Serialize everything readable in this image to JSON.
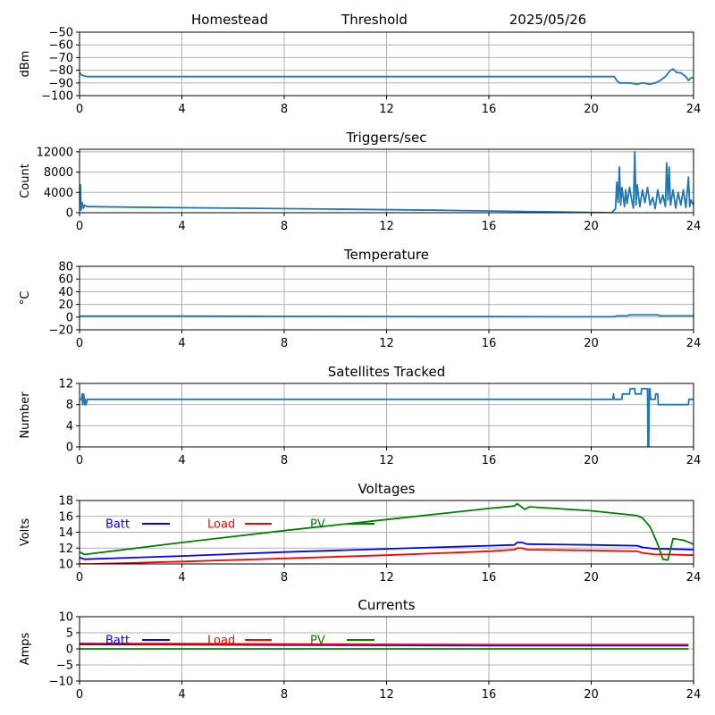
{
  "header": {
    "station": "Homestead",
    "mode": "Threshold",
    "date": "2025/05/26"
  },
  "colors": {
    "series_default": "#1f77b4",
    "batt": "#0000ff",
    "load": "#ff0000",
    "pv": "#008000",
    "grid": "#b0b0b0"
  },
  "chart_data": [
    {
      "id": "signal",
      "type": "line",
      "title": "",
      "xlabel": "",
      "ylabel": "dBm",
      "xlim": [
        0,
        24
      ],
      "ylim": [
        -100,
        -50
      ],
      "xticks": [
        0,
        4,
        8,
        12,
        16,
        20,
        24
      ],
      "yticks": [
        -100,
        -90,
        -80,
        -70,
        -60,
        -50
      ],
      "grid": true,
      "series": [
        {
          "color": "#1f77b4",
          "x": [
            0,
            0.1,
            0.3,
            0.5,
            2,
            6,
            10,
            14,
            18,
            20.9,
            21.0,
            21.1,
            21.5,
            21.8,
            22.0,
            22.3,
            22.5,
            22.7,
            22.9,
            23.1,
            23.2,
            23.35,
            23.5,
            23.7,
            23.8,
            23.9,
            24.0
          ],
          "y": [
            -82,
            -84,
            -85,
            -85,
            -85,
            -85,
            -85,
            -85,
            -85,
            -85,
            -88,
            -90,
            -90,
            -91,
            -90,
            -91,
            -90,
            -88,
            -85,
            -80,
            -79,
            -82,
            -82,
            -85,
            -88,
            -86,
            -86
          ]
        }
      ]
    },
    {
      "id": "triggers",
      "type": "line",
      "title": "Triggers/sec",
      "xlabel": "",
      "ylabel": "Count",
      "xlim": [
        0,
        24
      ],
      "ylim": [
        0,
        12500
      ],
      "xticks": [
        0,
        4,
        8,
        12,
        16,
        20,
        24
      ],
      "yticks": [
        0,
        4000,
        8000,
        12000
      ],
      "grid": true,
      "series": [
        {
          "color": "#1f77b4",
          "x": [
            0,
            0.03,
            0.06,
            0.1,
            0.15,
            0.2,
            0.3,
            0.5,
            2,
            6,
            10,
            14,
            18,
            20.8,
            20.95,
            21.0,
            21.05,
            21.1,
            21.15,
            21.2,
            21.3,
            21.35,
            21.4,
            21.5,
            21.6,
            21.65,
            21.7,
            21.75,
            21.8,
            21.9,
            22.0,
            22.1,
            22.2,
            22.3,
            22.4,
            22.5,
            22.6,
            22.7,
            22.8,
            22.9,
            22.95,
            23.0,
            23.05,
            23.1,
            23.2,
            23.3,
            23.4,
            23.5,
            23.6,
            23.7,
            23.8,
            23.85,
            23.9,
            24.0
          ],
          "y": [
            3000,
            5500,
            500,
            2000,
            900,
            1500,
            1200,
            1200,
            1100,
            900,
            700,
            500,
            200,
            0,
            800,
            6000,
            2000,
            9000,
            1500,
            5000,
            1200,
            4500,
            1800,
            5000,
            2000,
            900,
            12000,
            1500,
            5500,
            1200,
            4500,
            2000,
            5000,
            1500,
            3000,
            800,
            4500,
            1800,
            3500,
            1200,
            9800,
            2500,
            9000,
            1500,
            4500,
            900,
            4000,
            1500,
            4500,
            1000,
            7000,
            1200,
            2500,
            1500
          ]
        }
      ]
    },
    {
      "id": "temperature",
      "type": "line",
      "title": "Temperature",
      "xlabel": "",
      "ylabel": "°C",
      "xlim": [
        0,
        24
      ],
      "ylim": [
        -20,
        80
      ],
      "xticks": [
        0,
        4,
        8,
        12,
        16,
        20,
        24
      ],
      "yticks": [
        -20,
        0,
        20,
        40,
        60,
        80
      ],
      "grid": true,
      "series": [
        {
          "color": "#1f77b4",
          "x": [
            0,
            4,
            8,
            12,
            16,
            20,
            20.9,
            21.0,
            21.4,
            21.5,
            22.6,
            22.7,
            24.0
          ],
          "y": [
            1.5,
            1.5,
            1.3,
            1.0,
            0.8,
            0.6,
            0.6,
            2.0,
            2.0,
            3.5,
            3.5,
            2.0,
            2.0
          ]
        }
      ]
    },
    {
      "id": "satellites",
      "type": "line",
      "title": "Satellites Tracked",
      "xlabel": "",
      "ylabel": "Number",
      "xlim": [
        0,
        24
      ],
      "ylim": [
        0,
        12
      ],
      "xticks": [
        0,
        4,
        8,
        12,
        16,
        20,
        24
      ],
      "yticks": [
        0,
        4,
        8,
        12
      ],
      "grid": true,
      "series": [
        {
          "color": "#1f77b4",
          "x": [
            0,
            0.08,
            0.1,
            0.12,
            0.16,
            0.2,
            0.22,
            0.26,
            0.3,
            4,
            8,
            12,
            16,
            20,
            20.85,
            20.87,
            20.9,
            21.2,
            21.22,
            21.5,
            21.52,
            21.7,
            21.72,
            21.95,
            21.97,
            22.2,
            22.22,
            22.25,
            22.27,
            22.3,
            22.32,
            22.5,
            22.52,
            22.6,
            22.62,
            22.8,
            22.82,
            23.8,
            23.82,
            24.0
          ],
          "y": [
            9,
            9,
            10,
            8,
            10,
            8,
            9,
            8,
            9,
            9,
            9,
            9,
            9,
            9,
            9,
            10,
            9,
            9,
            10,
            10,
            11,
            11,
            10,
            10,
            11,
            11,
            0,
            0,
            11,
            11,
            9,
            9,
            10,
            10,
            8,
            8,
            8,
            8,
            9,
            9
          ]
        }
      ]
    },
    {
      "id": "voltages",
      "type": "line",
      "title": "Voltages",
      "xlabel": "",
      "ylabel": "Volts",
      "xlim": [
        0,
        24
      ],
      "ylim": [
        10,
        18
      ],
      "xticks": [
        0,
        4,
        8,
        12,
        16,
        20,
        24
      ],
      "yticks": [
        10,
        12,
        14,
        16,
        18
      ],
      "grid": true,
      "legend": "top-left",
      "series": [
        {
          "name": "Batt",
          "color": "#0000ff",
          "x": [
            0,
            0.2,
            4,
            8,
            12,
            16,
            17.0,
            17.1,
            17.3,
            17.5,
            20,
            21.8,
            22.0,
            22.5,
            23.0,
            24.0
          ],
          "y": [
            10.8,
            10.6,
            11.0,
            11.5,
            11.9,
            12.3,
            12.4,
            12.7,
            12.7,
            12.5,
            12.4,
            12.3,
            12.1,
            11.9,
            11.9,
            11.8
          ]
        },
        {
          "name": "Load",
          "color": "#ff0000",
          "x": [
            0,
            0.5,
            4,
            8,
            12,
            16,
            17.0,
            17.1,
            17.3,
            17.5,
            20,
            21.8,
            22.0,
            22.5,
            23.0,
            24.0
          ],
          "y": [
            10.0,
            10.0,
            10.3,
            10.7,
            11.1,
            11.6,
            11.8,
            12.0,
            12.0,
            11.8,
            11.7,
            11.6,
            11.4,
            11.2,
            11.2,
            11.1
          ]
        },
        {
          "name": "PV",
          "color": "#008000",
          "x": [
            0,
            0.2,
            4,
            8,
            12,
            16,
            17.0,
            17.1,
            17.4,
            17.6,
            20,
            21.8,
            22.0,
            22.3,
            22.6,
            22.8,
            23.0,
            23.2,
            23.6,
            24.0
          ],
          "y": [
            11.5,
            11.2,
            12.7,
            14.2,
            15.6,
            17.0,
            17.3,
            17.6,
            16.9,
            17.2,
            16.7,
            16.1,
            15.8,
            14.7,
            12.5,
            10.6,
            10.5,
            13.2,
            13.0,
            12.5
          ]
        }
      ]
    },
    {
      "id": "currents",
      "type": "line",
      "title": "Currents",
      "xlabel": "",
      "ylabel": "Amps",
      "xlim": [
        0,
        24
      ],
      "ylim": [
        -10,
        10
      ],
      "xticks": [
        0,
        4,
        8,
        12,
        16,
        20,
        24
      ],
      "yticks": [
        -10,
        -5,
        0,
        5,
        10
      ],
      "grid": true,
      "legend": "top-left",
      "series": [
        {
          "name": "Batt",
          "color": "#0000ff",
          "x": [
            0,
            4,
            8,
            12,
            16,
            20,
            23.8
          ],
          "y": [
            1.4,
            1.3,
            1.2,
            1.1,
            1.0,
            1.0,
            1.0
          ]
        },
        {
          "name": "Load",
          "color": "#ff0000",
          "x": [
            0,
            4,
            8,
            12,
            16,
            20,
            23.8
          ],
          "y": [
            1.7,
            1.6,
            1.5,
            1.4,
            1.3,
            1.3,
            1.3
          ]
        },
        {
          "name": "PV",
          "color": "#008000",
          "x": [
            0,
            4,
            8,
            12,
            16,
            20,
            23.8
          ],
          "y": [
            0.0,
            0.0,
            0.0,
            0.0,
            0.0,
            0.0,
            0.0
          ]
        }
      ]
    }
  ]
}
